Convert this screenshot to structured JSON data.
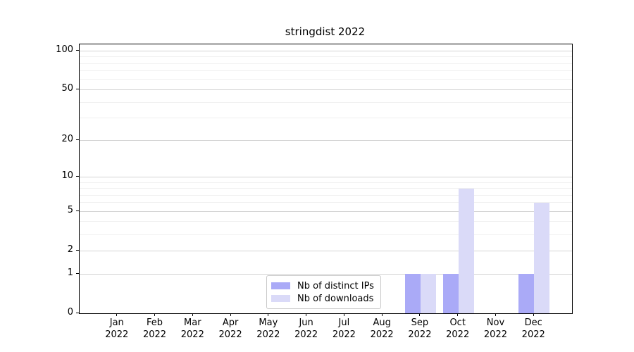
{
  "chart_data": {
    "type": "bar",
    "title": "stringdist 2022",
    "categories": [
      "Jan 2022",
      "Feb 2022",
      "Mar 2022",
      "Apr 2022",
      "May 2022",
      "Jun 2022",
      "Jul 2022",
      "Aug 2022",
      "Sep 2022",
      "Oct 2022",
      "Nov 2022",
      "Dec 2022"
    ],
    "x_tick_months": [
      "Jan",
      "Feb",
      "Mar",
      "Apr",
      "May",
      "Jun",
      "Jul",
      "Aug",
      "Sep",
      "Oct",
      "Nov",
      "Dec"
    ],
    "x_tick_year": "2022",
    "series": [
      {
        "name": "Nb of distinct IPs",
        "color": "#aaaaf7",
        "values": [
          0,
          0,
          0,
          0,
          0,
          0,
          0,
          0,
          1,
          1,
          0,
          1
        ]
      },
      {
        "name": "Nb of downloads",
        "color": "#dadaf8",
        "values": [
          0,
          0,
          0,
          0,
          0,
          0,
          0,
          0,
          1,
          8,
          0,
          6
        ]
      }
    ],
    "yscale": "log1p",
    "y_tick_values": [
      0,
      1,
      2,
      5,
      10,
      20,
      50,
      100
    ],
    "y_minor_gridline_values": [
      3,
      4,
      6,
      7,
      8,
      9,
      30,
      40,
      60,
      70,
      80,
      90
    ],
    "ylim": [
      0,
      112
    ],
    "grid": true,
    "legend_position": "lower center",
    "colors": {
      "major_grid": "#d3d3d3",
      "minor_grid": "#f0f0f0",
      "spine": "#000000",
      "background": "#ffffff"
    }
  }
}
